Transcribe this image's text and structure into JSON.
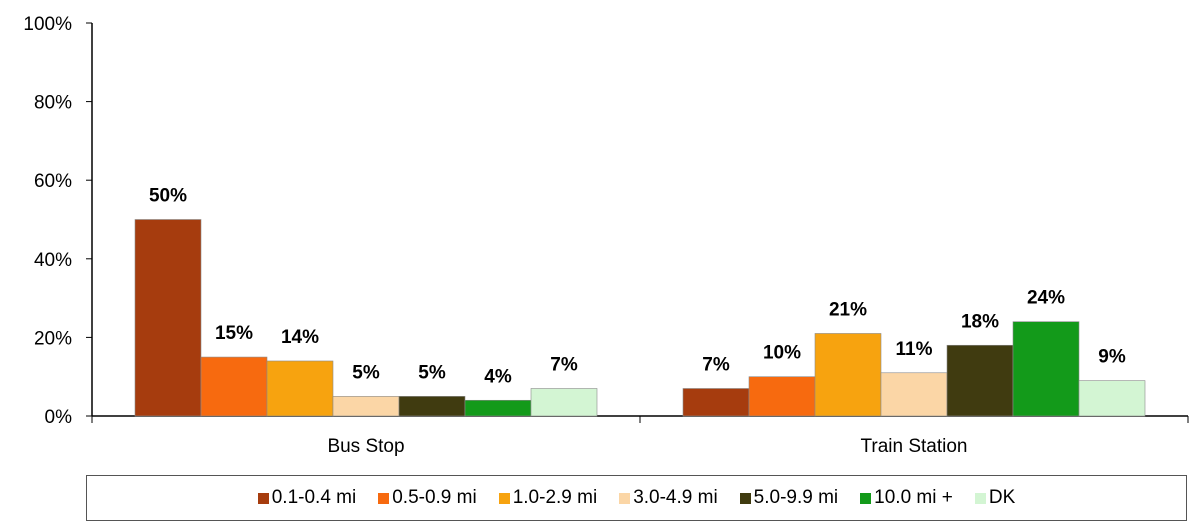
{
  "chart_data": {
    "type": "bar",
    "categories": [
      "Bus Stop",
      "Train Station"
    ],
    "series": [
      {
        "name": "0.1-0.4 mi",
        "color": "#a63c0e",
        "values": [
          50,
          7
        ],
        "labels": [
          "50%",
          "7%"
        ]
      },
      {
        "name": "0.5-0.9 mi",
        "color": "#f76a0f",
        "values": [
          15,
          10
        ],
        "labels": [
          "15%",
          "10%"
        ]
      },
      {
        "name": "1.0-2.9 mi",
        "color": "#f7a30f",
        "values": [
          14,
          21
        ],
        "labels": [
          "14%",
          "21%"
        ]
      },
      {
        "name": "3.0-4.9 mi",
        "color": "#fbd6a6",
        "values": [
          5,
          11
        ],
        "labels": [
          "5%",
          "11%"
        ]
      },
      {
        "name": "5.0-9.9 mi",
        "color": "#403b10",
        "values": [
          5,
          18
        ],
        "labels": [
          "5%",
          "18%"
        ]
      },
      {
        "name": "10.0 mi +",
        "color": "#139a1a",
        "values": [
          4,
          24
        ],
        "labels": [
          "4%",
          "24%"
        ]
      },
      {
        "name": "DK",
        "color": "#d3f5d3",
        "values": [
          7,
          9
        ],
        "labels": [
          "7%",
          "9%"
        ]
      }
    ],
    "y_ticks": [
      "0%",
      "20%",
      "40%",
      "60%",
      "80%",
      "100%"
    ],
    "ylim": [
      0,
      100
    ],
    "grid": false,
    "legend_position": "bottom"
  }
}
